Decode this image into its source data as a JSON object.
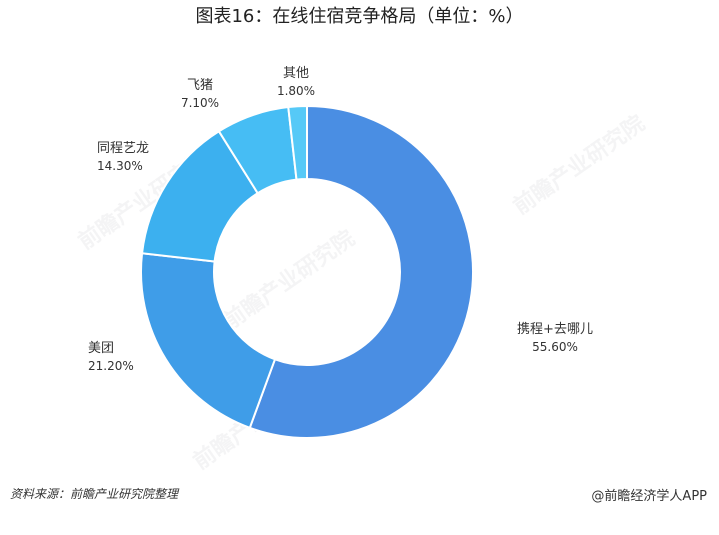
{
  "chart_data": {
    "type": "pie",
    "title": "图表16：在线住宿竞争格局（单位：%）",
    "donut": true,
    "categories": [
      "携程+去哪儿",
      "美团",
      "同程艺龙",
      "飞猪",
      "其他"
    ],
    "values": [
      55.6,
      21.2,
      14.3,
      7.1,
      1.8
    ],
    "value_labels": [
      "55.60%",
      "21.20%",
      "14.30%",
      "7.10%",
      "1.80%"
    ],
    "colors": [
      "#4a8ee3",
      "#3f9de8",
      "#3cb0ef",
      "#46bdf4",
      "#56c9f7"
    ]
  },
  "source": "资料来源：前瞻产业研究院整理",
  "brand": "@前瞻经济学人APP",
  "watermark": "前瞻产业研究院"
}
